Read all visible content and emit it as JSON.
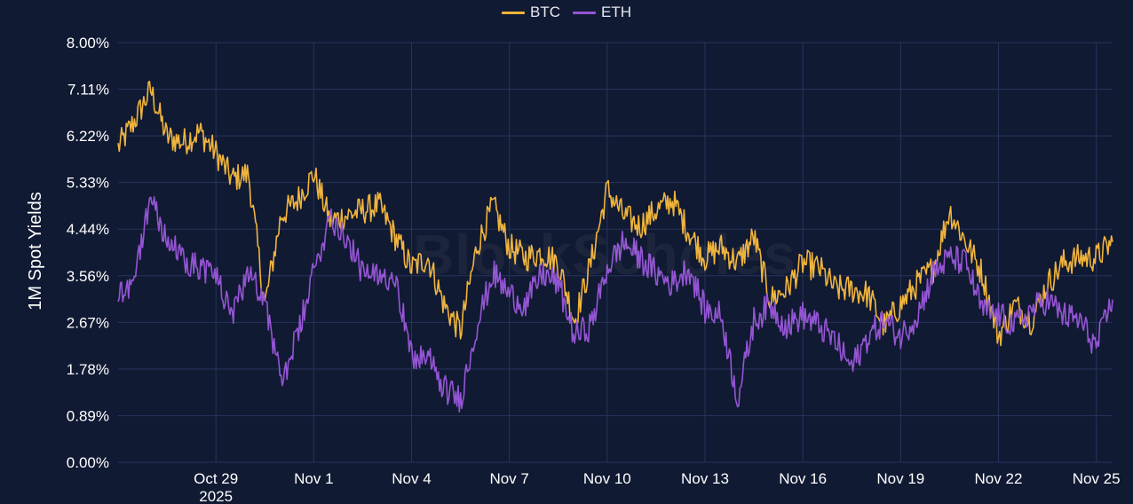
{
  "chart_data": {
    "type": "line",
    "title": "",
    "xlabel": "",
    "ylabel": "1M Spot Yields",
    "yticks": [
      "0.00%",
      "0.89%",
      "1.78%",
      "2.67%",
      "3.56%",
      "4.44%",
      "5.33%",
      "6.22%",
      "7.11%",
      "8.00%"
    ],
    "ylim": [
      0,
      8.0
    ],
    "xticks": [
      "Oct 29",
      "Nov 1",
      "Nov 4",
      "Nov 7",
      "Nov 10",
      "Nov 13",
      "Nov 16",
      "Nov 19",
      "Nov 22",
      "Nov 25"
    ],
    "xtick_year": "2025",
    "xlim": [
      "2025-10-26",
      "2025-11-25T12:00"
    ],
    "grid": true,
    "legend_position": "top-center",
    "watermark": "BlockScholes",
    "series": [
      {
        "name": "BTC",
        "color": "#f0b43c",
        "x": [
          "2025-10-26T00:00",
          "2025-10-26T12:00",
          "2025-10-27T00:00",
          "2025-10-27T12:00",
          "2025-10-28T00:00",
          "2025-10-28T12:00",
          "2025-10-29T00:00",
          "2025-10-29T12:00",
          "2025-10-30T00:00",
          "2025-10-30T12:00",
          "2025-10-31T00:00",
          "2025-10-31T12:00",
          "2025-11-01T00:00",
          "2025-11-01T12:00",
          "2025-11-02T00:00",
          "2025-11-02T12:00",
          "2025-11-03T00:00",
          "2025-11-03T12:00",
          "2025-11-04T00:00",
          "2025-11-04T12:00",
          "2025-11-05T00:00",
          "2025-11-05T12:00",
          "2025-11-06T00:00",
          "2025-11-06T12:00",
          "2025-11-07T00:00",
          "2025-11-07T12:00",
          "2025-11-08T00:00",
          "2025-11-08T12:00",
          "2025-11-09T00:00",
          "2025-11-09T12:00",
          "2025-11-10T00:00",
          "2025-11-10T12:00",
          "2025-11-11T00:00",
          "2025-11-11T12:00",
          "2025-11-12T00:00",
          "2025-11-12T12:00",
          "2025-11-13T00:00",
          "2025-11-13T12:00",
          "2025-11-14T00:00",
          "2025-11-14T12:00",
          "2025-11-15T00:00",
          "2025-11-15T12:00",
          "2025-11-16T00:00",
          "2025-11-16T12:00",
          "2025-11-17T00:00",
          "2025-11-17T12:00",
          "2025-11-18T00:00",
          "2025-11-18T12:00",
          "2025-11-19T00:00",
          "2025-11-19T12:00",
          "2025-11-20T00:00",
          "2025-11-20T12:00",
          "2025-11-21T00:00",
          "2025-11-21T12:00",
          "2025-11-22T00:00",
          "2025-11-22T12:00",
          "2025-11-23T00:00",
          "2025-11-23T12:00",
          "2025-11-24T00:00",
          "2025-11-24T12:00",
          "2025-11-25T00:00",
          "2025-11-25T12:00"
        ],
        "values": [
          6.0,
          6.5,
          7.1,
          6.2,
          6.1,
          6.3,
          5.9,
          5.4,
          5.5,
          3.0,
          4.7,
          5.0,
          5.5,
          4.6,
          4.7,
          4.8,
          4.9,
          4.3,
          3.7,
          3.9,
          3.0,
          2.5,
          4.1,
          4.9,
          4.1,
          3.9,
          4.0,
          3.8,
          2.7,
          3.8,
          5.2,
          4.7,
          4.5,
          4.8,
          5.0,
          4.4,
          3.9,
          4.1,
          3.8,
          4.3,
          3.1,
          3.3,
          3.8,
          3.7,
          3.3,
          3.3,
          3.2,
          2.6,
          3.0,
          3.4,
          3.7,
          4.8,
          4.2,
          3.6,
          2.4,
          3.0,
          2.7,
          3.4,
          3.8,
          3.9,
          3.9,
          4.2
        ]
      },
      {
        "name": "ETH",
        "color": "#9455d4",
        "x": [
          "2025-10-26T00:00",
          "2025-10-26T12:00",
          "2025-10-27T00:00",
          "2025-10-27T12:00",
          "2025-10-28T00:00",
          "2025-10-28T12:00",
          "2025-10-29T00:00",
          "2025-10-29T12:00",
          "2025-10-30T00:00",
          "2025-10-30T12:00",
          "2025-10-31T00:00",
          "2025-10-31T12:00",
          "2025-11-01T00:00",
          "2025-11-01T12:00",
          "2025-11-02T00:00",
          "2025-11-02T12:00",
          "2025-11-03T00:00",
          "2025-11-03T12:00",
          "2025-11-04T00:00",
          "2025-11-04T12:00",
          "2025-11-05T00:00",
          "2025-11-05T12:00",
          "2025-11-06T00:00",
          "2025-11-06T12:00",
          "2025-11-07T00:00",
          "2025-11-07T12:00",
          "2025-11-08T00:00",
          "2025-11-08T12:00",
          "2025-11-09T00:00",
          "2025-11-09T12:00",
          "2025-11-10T00:00",
          "2025-11-10T12:00",
          "2025-11-11T00:00",
          "2025-11-11T12:00",
          "2025-11-12T00:00",
          "2025-11-12T12:00",
          "2025-11-13T00:00",
          "2025-11-13T12:00",
          "2025-11-14T00:00",
          "2025-11-14T12:00",
          "2025-11-15T00:00",
          "2025-11-15T12:00",
          "2025-11-16T00:00",
          "2025-11-16T12:00",
          "2025-11-17T00:00",
          "2025-11-17T12:00",
          "2025-11-18T00:00",
          "2025-11-18T12:00",
          "2025-11-19T00:00",
          "2025-11-19T12:00",
          "2025-11-20T00:00",
          "2025-11-20T12:00",
          "2025-11-21T00:00",
          "2025-11-21T12:00",
          "2025-11-22T00:00",
          "2025-11-22T12:00",
          "2025-11-23T00:00",
          "2025-11-23T12:00",
          "2025-11-24T00:00",
          "2025-11-24T12:00",
          "2025-11-25T00:00",
          "2025-11-25T12:00"
        ],
        "values": [
          3.2,
          3.5,
          5.1,
          4.2,
          3.9,
          3.7,
          3.6,
          2.7,
          3.7,
          3.1,
          1.5,
          2.4,
          3.6,
          4.7,
          4.3,
          3.6,
          3.5,
          3.6,
          2.0,
          2.0,
          1.4,
          1.2,
          2.6,
          3.6,
          3.2,
          3.0,
          3.6,
          3.4,
          2.4,
          2.6,
          3.7,
          4.2,
          3.9,
          3.6,
          3.4,
          3.7,
          2.9,
          2.8,
          1.2,
          2.7,
          3.0,
          2.6,
          2.8,
          2.6,
          2.3,
          1.8,
          2.4,
          2.7,
          2.4,
          2.8,
          3.6,
          3.9,
          3.8,
          2.9,
          2.8,
          2.6,
          2.9,
          3.1,
          2.8,
          2.7,
          2.2,
          3.1
        ]
      }
    ]
  }
}
